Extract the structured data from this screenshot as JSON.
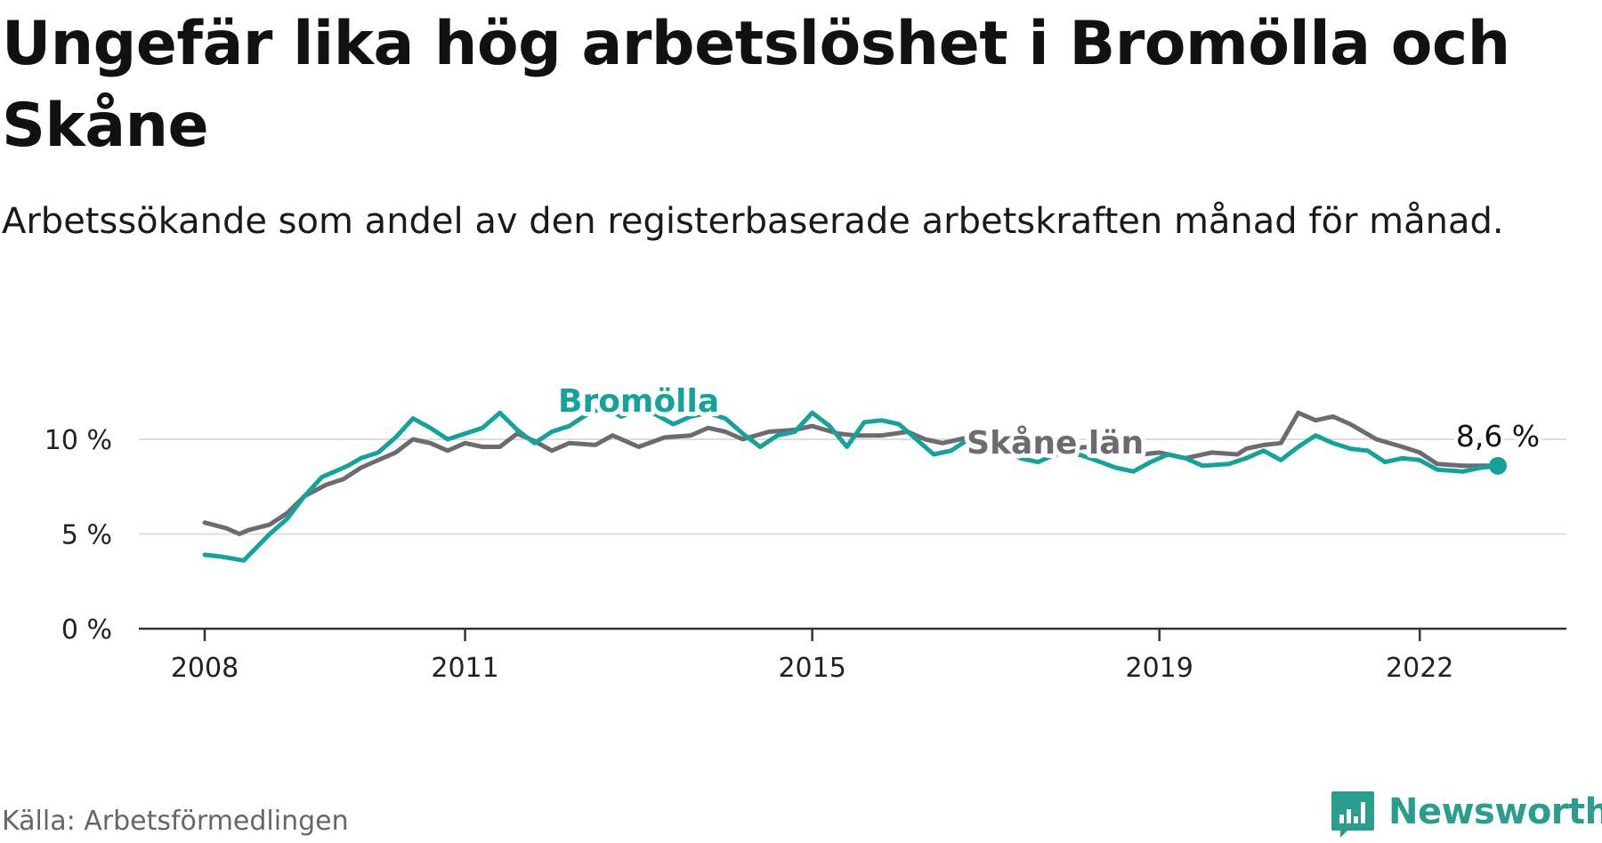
{
  "title": "Ungefär lika hög arbetslöshet i Bromölla och Skåne",
  "subtitle": "Arbetssökande som andel av den registerbaserade arbetskraften månad för månad.",
  "source": "Källa: Arbetsförmedlingen",
  "brand": "Newsworthy",
  "colors": {
    "bromolla": "#13a39a",
    "skane": "#6d6a70",
    "grid": "#dddddd",
    "axis": "#333333",
    "brand": "#2a9d8f"
  },
  "chart_data": {
    "type": "line",
    "x_unit": "year",
    "ylim": [
      0,
      12
    ],
    "y_ticks": [
      {
        "value": 0,
        "label": "0 %"
      },
      {
        "value": 5,
        "label": "5 %"
      },
      {
        "value": 10,
        "label": "10 %"
      }
    ],
    "x_ticks": [
      {
        "value": 2008,
        "label": "2008"
      },
      {
        "value": 2011,
        "label": "2011"
      },
      {
        "value": 2015,
        "label": "2015"
      },
      {
        "value": 2019,
        "label": "2019"
      },
      {
        "value": 2022,
        "label": "2022"
      }
    ],
    "grid": "horizontal",
    "end_label": "8,6 %",
    "series": [
      {
        "name": "Skåne län",
        "color": "#6d6a70",
        "points": [
          [
            2008.0,
            5.6
          ],
          [
            2008.25,
            5.3
          ],
          [
            2008.4,
            5.0
          ],
          [
            2008.5,
            5.2
          ],
          [
            2008.75,
            5.5
          ],
          [
            2008.95,
            6.1
          ],
          [
            2009.15,
            7.0
          ],
          [
            2009.4,
            7.6
          ],
          [
            2009.6,
            7.9
          ],
          [
            2009.8,
            8.5
          ],
          [
            2010.0,
            8.9
          ],
          [
            2010.2,
            9.3
          ],
          [
            2010.4,
            10.0
          ],
          [
            2010.6,
            9.8
          ],
          [
            2010.8,
            9.4
          ],
          [
            2011.0,
            9.8
          ],
          [
            2011.2,
            9.6
          ],
          [
            2011.4,
            9.6
          ],
          [
            2011.6,
            10.3
          ],
          [
            2011.8,
            9.9
          ],
          [
            2012.0,
            9.4
          ],
          [
            2012.2,
            9.8
          ],
          [
            2012.5,
            9.7
          ],
          [
            2012.7,
            10.2
          ],
          [
            2013.0,
            9.6
          ],
          [
            2013.3,
            10.1
          ],
          [
            2013.6,
            10.2
          ],
          [
            2013.8,
            10.6
          ],
          [
            2014.0,
            10.4
          ],
          [
            2014.2,
            10.0
          ],
          [
            2014.5,
            10.4
          ],
          [
            2014.8,
            10.5
          ],
          [
            2015.0,
            10.7
          ],
          [
            2015.3,
            10.3
          ],
          [
            2015.5,
            10.2
          ],
          [
            2015.8,
            10.2
          ],
          [
            2016.1,
            10.4
          ],
          [
            2016.3,
            10.0
          ],
          [
            2016.5,
            9.8
          ],
          [
            2016.7,
            10.0
          ],
          [
            2017.0,
            10.3
          ],
          [
            2017.3,
            9.8
          ],
          [
            2017.6,
            9.7
          ],
          [
            2017.9,
            9.5
          ],
          [
            2018.2,
            9.6
          ],
          [
            2018.5,
            9.3
          ],
          [
            2018.8,
            9.2
          ],
          [
            2019.0,
            9.3
          ],
          [
            2019.3,
            9.0
          ],
          [
            2019.6,
            9.3
          ],
          [
            2019.9,
            9.2
          ],
          [
            2020.0,
            9.5
          ],
          [
            2020.2,
            9.7
          ],
          [
            2020.4,
            9.8
          ],
          [
            2020.6,
            11.4
          ],
          [
            2020.8,
            11.0
          ],
          [
            2021.0,
            11.2
          ],
          [
            2021.2,
            10.8
          ],
          [
            2021.5,
            10.0
          ],
          [
            2021.8,
            9.6
          ],
          [
            2022.0,
            9.3
          ],
          [
            2022.2,
            8.7
          ],
          [
            2022.5,
            8.6
          ],
          [
            2022.8,
            8.6
          ]
        ]
      },
      {
        "name": "Bromölla",
        "color": "#13a39a",
        "points": [
          [
            2008.0,
            3.9
          ],
          [
            2008.2,
            3.8
          ],
          [
            2008.45,
            3.6
          ],
          [
            2008.75,
            5.0
          ],
          [
            2008.95,
            5.8
          ],
          [
            2009.15,
            7.0
          ],
          [
            2009.35,
            8.0
          ],
          [
            2009.5,
            8.3
          ],
          [
            2009.65,
            8.6
          ],
          [
            2009.8,
            9.0
          ],
          [
            2010.0,
            9.3
          ],
          [
            2010.2,
            10.1
          ],
          [
            2010.4,
            11.1
          ],
          [
            2010.6,
            10.6
          ],
          [
            2010.8,
            10.0
          ],
          [
            2011.0,
            10.3
          ],
          [
            2011.2,
            10.6
          ],
          [
            2011.4,
            11.4
          ],
          [
            2011.6,
            10.5
          ],
          [
            2011.8,
            9.8
          ],
          [
            2012.0,
            10.4
          ],
          [
            2012.2,
            10.7
          ],
          [
            2012.4,
            11.3
          ],
          [
            2012.6,
            11.7
          ],
          [
            2012.8,
            11.2
          ],
          [
            2013.0,
            11.6
          ],
          [
            2013.2,
            11.3
          ],
          [
            2013.4,
            10.8
          ],
          [
            2013.6,
            11.2
          ],
          [
            2013.8,
            11.4
          ],
          [
            2014.0,
            11.1
          ],
          [
            2014.2,
            10.3
          ],
          [
            2014.4,
            9.6
          ],
          [
            2014.6,
            10.2
          ],
          [
            2014.8,
            10.4
          ],
          [
            2015.0,
            11.4
          ],
          [
            2015.2,
            10.7
          ],
          [
            2015.4,
            9.6
          ],
          [
            2015.6,
            10.9
          ],
          [
            2015.8,
            11.0
          ],
          [
            2016.0,
            10.8
          ],
          [
            2016.2,
            10.0
          ],
          [
            2016.4,
            9.2
          ],
          [
            2016.6,
            9.4
          ],
          [
            2016.8,
            10.0
          ],
          [
            2017.0,
            9.8
          ],
          [
            2017.2,
            9.5
          ],
          [
            2017.4,
            9.0
          ],
          [
            2017.6,
            8.8
          ],
          [
            2017.8,
            9.2
          ],
          [
            2018.0,
            9.3
          ],
          [
            2018.2,
            9.0
          ],
          [
            2018.5,
            8.5
          ],
          [
            2018.7,
            8.3
          ],
          [
            2018.9,
            8.8
          ],
          [
            2019.1,
            9.2
          ],
          [
            2019.3,
            9.0
          ],
          [
            2019.5,
            8.6
          ],
          [
            2019.8,
            8.7
          ],
          [
            2020.0,
            9.0
          ],
          [
            2020.2,
            9.4
          ],
          [
            2020.4,
            8.9
          ],
          [
            2020.6,
            9.6
          ],
          [
            2020.8,
            10.2
          ],
          [
            2021.0,
            9.8
          ],
          [
            2021.2,
            9.5
          ],
          [
            2021.4,
            9.4
          ],
          [
            2021.6,
            8.8
          ],
          [
            2021.8,
            9.0
          ],
          [
            2022.0,
            8.9
          ],
          [
            2022.2,
            8.4
          ],
          [
            2022.5,
            8.3
          ],
          [
            2022.7,
            8.5
          ],
          [
            2022.9,
            8.6
          ]
        ]
      }
    ]
  }
}
